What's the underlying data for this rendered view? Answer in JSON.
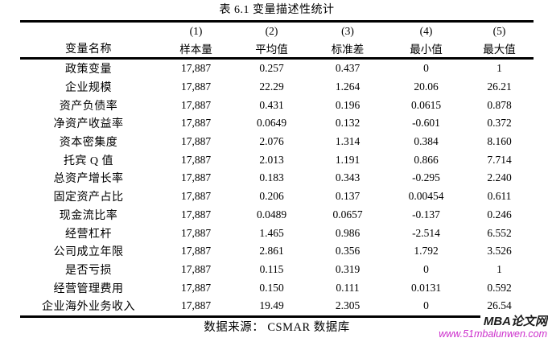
{
  "page": {
    "title": "表 6.1 变量描述性统计"
  },
  "table": {
    "header_numbers": [
      "(1)",
      "(2)",
      "(3)",
      "(4)",
      "(5)"
    ],
    "columns": [
      "变量名称",
      "样本量",
      "平均值",
      "标准差",
      "最小值",
      "最大值"
    ],
    "rows": [
      [
        "政策变量",
        "17,887",
        "0.257",
        "0.437",
        "0",
        "1"
      ],
      [
        "企业规模",
        "17,887",
        "22.29",
        "1.264",
        "20.06",
        "26.21"
      ],
      [
        "资产负债率",
        "17,887",
        "0.431",
        "0.196",
        "0.0615",
        "0.878"
      ],
      [
        "净资产收益率",
        "17,887",
        "0.0649",
        "0.132",
        "-0.601",
        "0.372"
      ],
      [
        "资本密集度",
        "17,887",
        "2.076",
        "1.314",
        "0.384",
        "8.160"
      ],
      [
        "托宾 Q 值",
        "17,887",
        "2.013",
        "1.191",
        "0.866",
        "7.714"
      ],
      [
        "总资产增长率",
        "17,887",
        "0.183",
        "0.343",
        "-0.295",
        "2.240"
      ],
      [
        "固定资产占比",
        "17,887",
        "0.206",
        "0.137",
        "0.00454",
        "0.611"
      ],
      [
        "现金流比率",
        "17,887",
        "0.0489",
        "0.0657",
        "-0.137",
        "0.246"
      ],
      [
        "经营杠杆",
        "17,887",
        "1.465",
        "0.986",
        "-2.514",
        "6.552"
      ],
      [
        "公司成立年限",
        "17,887",
        "2.861",
        "0.356",
        "1.792",
        "3.526"
      ],
      [
        "是否亏损",
        "17,887",
        "0.115",
        "0.319",
        "0",
        "1"
      ],
      [
        "经营管理费用",
        "17,887",
        "0.150",
        "0.111",
        "0.0131",
        "0.592"
      ],
      [
        "企业海外业务收入",
        "17,887",
        "19.49",
        "2.305",
        "0",
        "26.54"
      ]
    ],
    "source": "数据来源： CSMAR 数据库"
  },
  "watermark": {
    "brand": "MBA论文网",
    "url": "www.51mbalunwen.com",
    "brand_color": "#1c1c1c",
    "url_color": "#cc2fcc"
  },
  "colors": {
    "text": "#000000",
    "background": "#ffffff",
    "rule": "#000000"
  }
}
